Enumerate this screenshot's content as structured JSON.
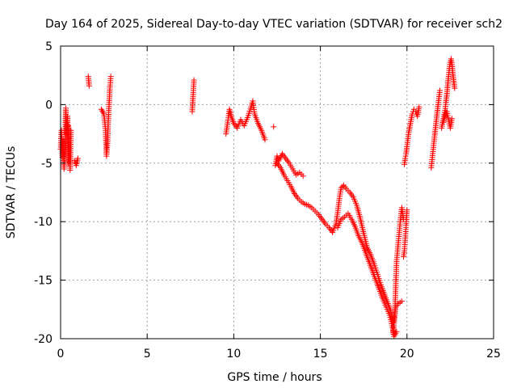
{
  "chart_data": {
    "type": "scatter",
    "title": "Day 164 of 2025, Sidereal Day-to-day VTEC variation (SDTVAR) for receiver sch2",
    "xlabel": "GPS time / hours",
    "ylabel": "SDTVAR / TECUs",
    "xlim": [
      0,
      25
    ],
    "ylim": [
      -20,
      5
    ],
    "xticks": [
      0,
      5,
      10,
      15,
      20,
      25
    ],
    "yticks": [
      -20,
      -15,
      -10,
      -5,
      0,
      5
    ],
    "xtick_labels": [
      "0",
      "5",
      "10",
      "15",
      "20",
      "25"
    ],
    "ytick_labels": [
      "-20",
      "-15",
      "-10",
      "-5",
      "0",
      "5"
    ],
    "grid": true,
    "marker": "+",
    "series": [
      {
        "name": "sch2",
        "color": "#ff0000",
        "segments": [
          [
            [
              0.0,
              -3.8
            ],
            [
              0.05,
              -2.2
            ],
            [
              0.1,
              -4.5
            ],
            [
              0.15,
              -3.0
            ],
            [
              0.2,
              -5.5
            ],
            [
              0.25,
              -4.0
            ],
            [
              0.3,
              -0.3
            ],
            [
              0.35,
              -2.5
            ],
            [
              0.4,
              -1.0
            ],
            [
              0.45,
              -5.0
            ]
          ],
          [
            [
              0.45,
              -1.8
            ],
            [
              0.5,
              -4.2
            ],
            [
              0.55,
              -5.6
            ],
            [
              0.6,
              -2.2
            ]
          ],
          [
            [
              0.8,
              -4.8
            ],
            [
              0.9,
              -5.2
            ],
            [
              1.0,
              -4.6
            ]
          ],
          [
            [
              1.6,
              2.4
            ],
            [
              1.65,
              1.6
            ]
          ],
          [
            [
              2.35,
              -0.4
            ],
            [
              2.5,
              -0.8
            ],
            [
              2.6,
              -2.2
            ],
            [
              2.65,
              -4.4
            ],
            [
              2.7,
              -3.5
            ],
            [
              2.75,
              -1.5
            ],
            [
              2.8,
              0.0
            ],
            [
              2.85,
              1.5
            ],
            [
              2.9,
              2.4
            ]
          ],
          [
            [
              7.6,
              -0.6
            ],
            [
              7.65,
              0.7
            ],
            [
              7.7,
              2.1
            ]
          ],
          [
            [
              9.55,
              -2.5
            ],
            [
              9.65,
              -1.5
            ],
            [
              9.75,
              -0.4
            ],
            [
              9.85,
              -1.0
            ],
            [
              10.0,
              -1.6
            ],
            [
              10.2,
              -2.0
            ],
            [
              10.4,
              -1.3
            ],
            [
              10.6,
              -1.8
            ],
            [
              10.8,
              -1.1
            ],
            [
              11.0,
              -0.2
            ],
            [
              11.1,
              0.3
            ],
            [
              11.2,
              -0.8
            ],
            [
              11.4,
              -1.6
            ],
            [
              11.6,
              -2.2
            ],
            [
              11.8,
              -3.0
            ]
          ],
          [
            [
              12.3,
              -1.9
            ]
          ],
          [
            [
              12.4,
              -5.2
            ],
            [
              12.5,
              -4.4
            ],
            [
              12.6,
              -4.8
            ],
            [
              12.8,
              -4.2
            ],
            [
              13.0,
              -4.6
            ],
            [
              13.2,
              -5.0
            ],
            [
              13.4,
              -5.5
            ],
            [
              13.6,
              -6.0
            ],
            [
              13.8,
              -5.8
            ],
            [
              14.0,
              -6.1
            ]
          ],
          [
            [
              12.5,
              -5.0
            ],
            [
              12.7,
              -5.4
            ],
            [
              12.9,
              -6.0
            ],
            [
              13.1,
              -6.5
            ],
            [
              13.3,
              -7.0
            ],
            [
              13.5,
              -7.6
            ],
            [
              13.7,
              -8.0
            ],
            [
              13.9,
              -8.3
            ],
            [
              14.1,
              -8.5
            ],
            [
              14.3,
              -8.6
            ],
            [
              14.5,
              -8.8
            ],
            [
              14.7,
              -9.1
            ],
            [
              14.9,
              -9.4
            ],
            [
              15.1,
              -9.8
            ],
            [
              15.3,
              -10.2
            ],
            [
              15.5,
              -10.5
            ],
            [
              15.7,
              -10.9
            ]
          ],
          [
            [
              15.7,
              -10.9
            ],
            [
              15.9,
              -10.2
            ],
            [
              16.0,
              -9.2
            ],
            [
              16.1,
              -8.0
            ],
            [
              16.2,
              -7.1
            ],
            [
              16.35,
              -6.9
            ],
            [
              16.5,
              -7.2
            ],
            [
              16.7,
              -7.5
            ],
            [
              16.9,
              -7.9
            ],
            [
              17.1,
              -8.6
            ],
            [
              17.3,
              -9.7
            ],
            [
              17.5,
              -11.0
            ],
            [
              17.7,
              -12.2
            ],
            [
              17.9,
              -12.8
            ],
            [
              18.1,
              -13.6
            ],
            [
              18.3,
              -14.5
            ],
            [
              18.5,
              -15.4
            ],
            [
              18.7,
              -16.2
            ],
            [
              18.9,
              -17.0
            ],
            [
              19.05,
              -17.6
            ],
            [
              19.2,
              -18.6
            ],
            [
              19.35,
              -17.3
            ],
            [
              19.5,
              -17.0
            ],
            [
              19.7,
              -16.8
            ]
          ],
          [
            [
              16.0,
              -10.5
            ],
            [
              16.2,
              -9.8
            ],
            [
              16.4,
              -9.6
            ],
            [
              16.6,
              -9.3
            ],
            [
              16.8,
              -9.8
            ],
            [
              17.0,
              -10.4
            ],
            [
              17.2,
              -11.2
            ],
            [
              17.4,
              -11.8
            ],
            [
              17.6,
              -12.6
            ],
            [
              17.8,
              -13.4
            ],
            [
              18.0,
              -14.2
            ],
            [
              18.2,
              -15.0
            ],
            [
              18.4,
              -15.8
            ],
            [
              18.6,
              -16.6
            ],
            [
              18.8,
              -17.3
            ],
            [
              19.0,
              -18.0
            ],
            [
              19.15,
              -18.9
            ],
            [
              19.25,
              -19.8
            ],
            [
              19.4,
              -19.4
            ]
          ],
          [
            [
              19.2,
              -19.5
            ],
            [
              19.3,
              -18.0
            ],
            [
              19.35,
              -15.6
            ],
            [
              19.4,
              -13.4
            ],
            [
              19.5,
              -11.8
            ],
            [
              19.6,
              -10.2
            ],
            [
              19.7,
              -8.8
            ],
            [
              19.8,
              -9.8
            ]
          ],
          [
            [
              19.8,
              -13.0
            ],
            [
              19.85,
              -12.5
            ],
            [
              19.9,
              -11.4
            ],
            [
              19.95,
              -10.3
            ],
            [
              20.0,
              -9.0
            ]
          ],
          [
            [
              19.85,
              -5.1
            ],
            [
              19.9,
              -4.6
            ],
            [
              19.95,
              -4.2
            ],
            [
              20.0,
              -3.6
            ],
            [
              20.1,
              -2.4
            ],
            [
              20.2,
              -1.6
            ],
            [
              20.3,
              -0.8
            ],
            [
              20.4,
              -0.4
            ],
            [
              20.5,
              -0.6
            ],
            [
              20.6,
              -1.0
            ],
            [
              20.7,
              -0.2
            ]
          ],
          [
            [
              21.4,
              -5.4
            ],
            [
              21.5,
              -4.0
            ],
            [
              21.6,
              -2.6
            ],
            [
              21.7,
              -1.3
            ],
            [
              21.8,
              0.0
            ],
            [
              21.9,
              1.2
            ]
          ],
          [
            [
              22.0,
              -2.0
            ],
            [
              22.1,
              -1.2
            ],
            [
              22.2,
              -0.5
            ],
            [
              22.25,
              0.2
            ],
            [
              22.3,
              0.8
            ],
            [
              22.35,
              1.6
            ],
            [
              22.4,
              2.4
            ],
            [
              22.45,
              3.1
            ],
            [
              22.5,
              3.6
            ],
            [
              22.55,
              3.9
            ],
            [
              22.6,
              3.4
            ],
            [
              22.65,
              2.6
            ],
            [
              22.7,
              2.0
            ],
            [
              22.75,
              1.4
            ]
          ],
          [
            [
              22.1,
              -1.5
            ],
            [
              22.2,
              -0.9
            ],
            [
              22.3,
              -0.6
            ],
            [
              22.4,
              -1.3
            ],
            [
              22.5,
              -2.0
            ],
            [
              22.6,
              -1.2
            ]
          ]
        ]
      }
    ]
  }
}
